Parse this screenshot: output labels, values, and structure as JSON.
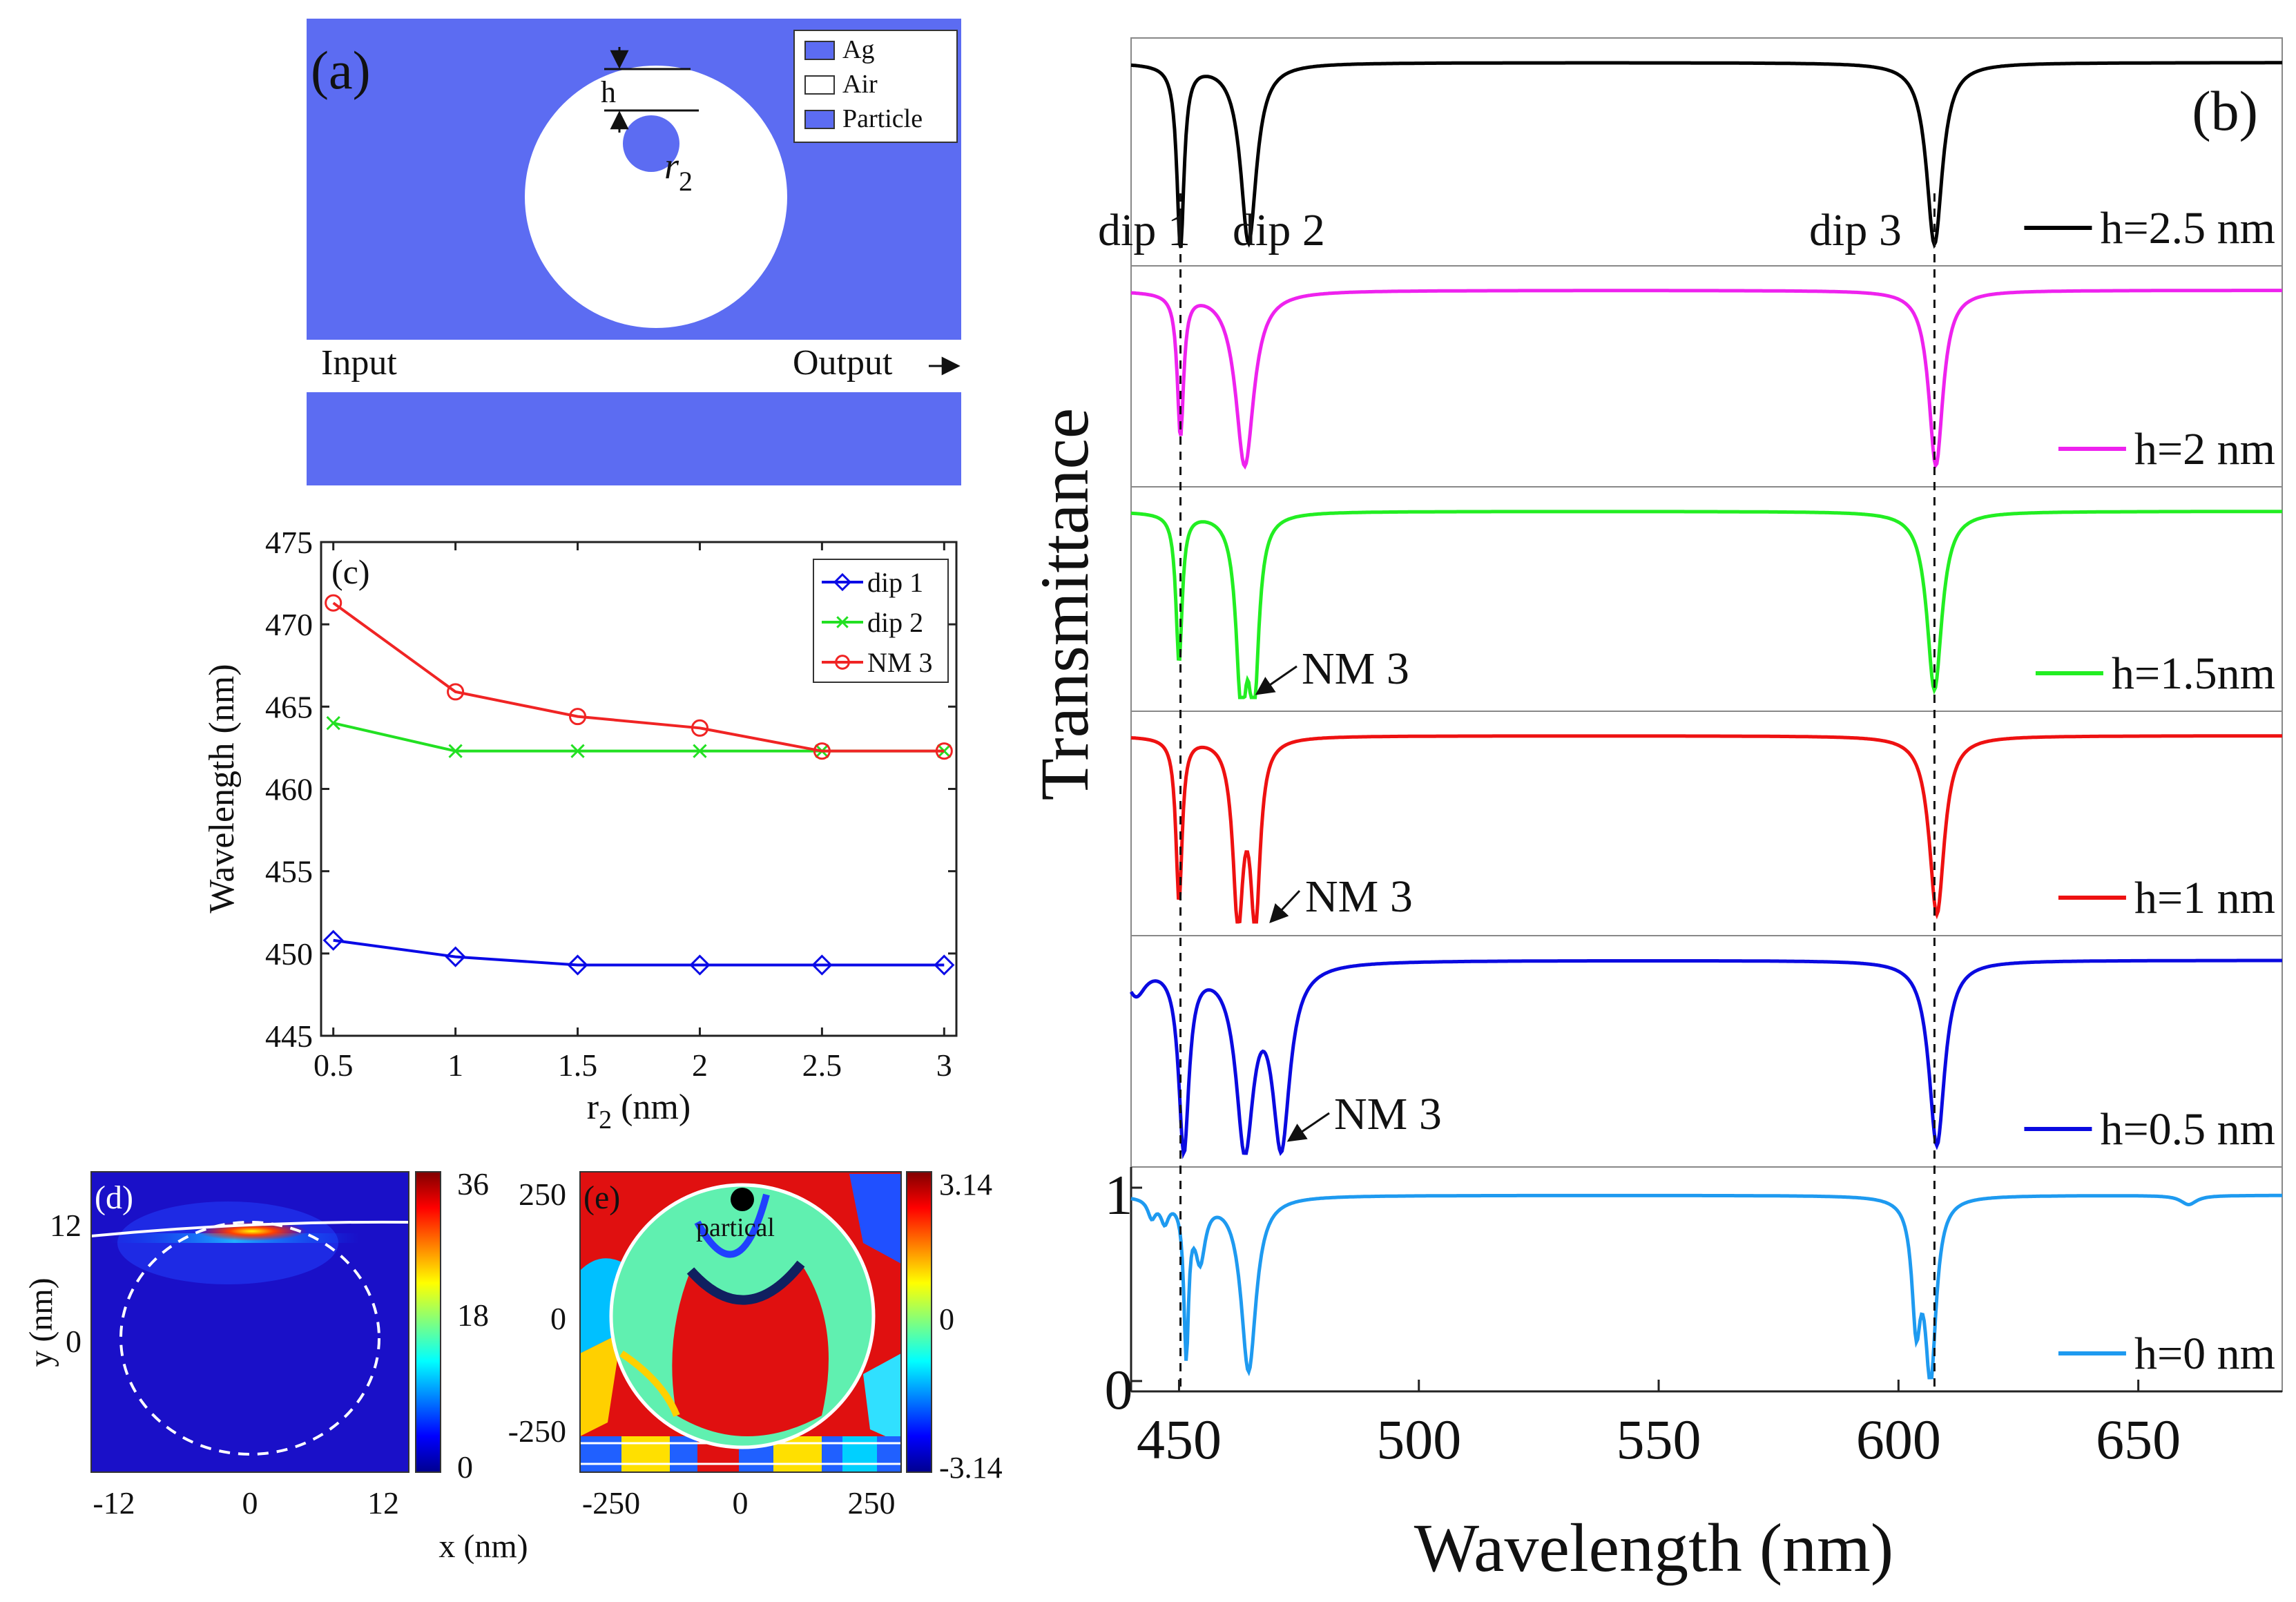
{
  "colors": {
    "ag": "#5C6CF2",
    "dip1": "#0A0AE6",
    "dip2": "#22E022",
    "nm3": "#F02424",
    "h25": "#000000",
    "h2": "#EE22EE",
    "h15": "#22EE22",
    "h1": "#EE1111",
    "h05": "#0A0AE0",
    "h0": "#1E9AF0"
  },
  "panel_a": {
    "label": "(a)",
    "h_label": "h",
    "r2_label": "r",
    "r2_sub": "2",
    "input_label": "Input",
    "output_label": "Output",
    "legend": [
      "Ag",
      "Air",
      "Particle"
    ]
  },
  "panel_b": {
    "label": "(b)",
    "ylabel": "Transmittance",
    "xlabel": "Wavelength (nm)",
    "xticks": [
      "450",
      "500",
      "550",
      "600",
      "650"
    ],
    "yticks": [
      "1",
      "0"
    ],
    "dip_labels": [
      "dip 1",
      "dip 2",
      "dip 3"
    ],
    "nm3_label": "NM 3"
  },
  "panel_d": {
    "label": "(d)",
    "xticks": [
      "-12",
      "0",
      "12"
    ],
    "yticks": [
      "12",
      "0"
    ],
    "ylabel": "y (nm)",
    "xlabel": "x (nm)",
    "cbar_ticks": [
      "36",
      "18",
      "0"
    ]
  },
  "panel_e": {
    "label": "(e)",
    "xticks": [
      "-250",
      "0",
      "250"
    ],
    "yticks": [
      "250",
      "0",
      "-250"
    ],
    "particle_label": "partical",
    "cbar_ticks": [
      "3.14",
      "0",
      "-3.14"
    ]
  },
  "chart_data": [
    {
      "type": "line",
      "title": "(c)",
      "xlabel": "r2 (nm)",
      "ylabel": "Wavelength (nm)",
      "x": [
        0.5,
        1,
        1.5,
        2,
        2.5,
        3
      ],
      "xticks": [
        "0.5",
        "1",
        "1.5",
        "2",
        "2.5",
        "3"
      ],
      "yticks": [
        "475",
        "470",
        "465",
        "460",
        "455",
        "450",
        "445"
      ],
      "xlim": [
        0.45,
        3.05
      ],
      "ylim": [
        445,
        475
      ],
      "legend_position": "top-right",
      "series": [
        {
          "name": "dip 1",
          "marker": "diamond",
          "values": [
            450.8,
            449.8,
            449.3,
            449.3,
            449.3,
            449.3
          ]
        },
        {
          "name": "dip 2",
          "marker": "x",
          "values": [
            464.0,
            462.3,
            462.3,
            462.3,
            462.3,
            462.3
          ]
        },
        {
          "name": "NM 3",
          "marker": "circle",
          "values": [
            471.3,
            465.9,
            464.4,
            463.7,
            462.3,
            462.3
          ]
        }
      ]
    },
    {
      "type": "line",
      "title": "(b)",
      "xlabel": "Wavelength (nm)",
      "ylabel": "Transmittance",
      "xlim": [
        440,
        680
      ],
      "ylim": [
        0,
        1
      ],
      "dashed_lines_at": [
        450.3,
        607.5
      ],
      "series": [
        {
          "name": "h=2.5 nm",
          "baseline": 0.98,
          "dips": [
            [
              450.3,
              0.97,
              0.9
            ],
            [
              464.5,
              0.95,
              2.0
            ],
            [
              607.5,
              0.96,
              2.0
            ]
          ]
        },
        {
          "name": "h=2 nm",
          "baseline": 0.98,
          "dips": [
            [
              450.3,
              0.78,
              0.8
            ],
            [
              463.7,
              0.96,
              2.3
            ],
            [
              607.8,
              0.96,
              1.8
            ]
          ]
        },
        {
          "name": "h=1.5nm",
          "baseline": 0.98,
          "dips": [
            [
              450.0,
              0.8,
              0.8
            ],
            [
              463.0,
              0.95,
              1.3
            ],
            [
              465.6,
              0.93,
              1.2
            ],
            [
              607.5,
              0.96,
              1.9
            ]
          ]
        },
        {
          "name": "h=1 nm",
          "baseline": 0.98,
          "dips": [
            [
              450.0,
              0.88,
              0.8
            ],
            [
              462.3,
              0.95,
              1.3
            ],
            [
              465.9,
              0.95,
              1.2
            ],
            [
              608.0,
              0.96,
              1.9
            ]
          ]
        },
        {
          "name": "h=0.5 nm",
          "baseline": 0.98,
          "dips": [
            [
              441.0,
              0.16,
              2.5
            ],
            [
              451.0,
              0.96,
              1.3
            ],
            [
              463.7,
              0.93,
              2.2
            ],
            [
              471.3,
              0.92,
              2.2
            ],
            [
              608.0,
              0.96,
              2.0
            ]
          ]
        },
        {
          "name": "h=0 nm",
          "baseline": 0.96,
          "dips": [
            [
              444.3,
              0.1,
              1.0
            ],
            [
              447.0,
              0.12,
              1.0
            ],
            [
              451.5,
              0.83,
              0.6
            ],
            [
              454.4,
              0.32,
              1.3
            ],
            [
              464.5,
              0.96,
              1.9
            ],
            [
              603.7,
              0.63,
              1.1
            ],
            [
              606.7,
              0.96,
              1.4
            ],
            [
              660.5,
              0.05,
              2.0
            ]
          ]
        }
      ]
    }
  ]
}
